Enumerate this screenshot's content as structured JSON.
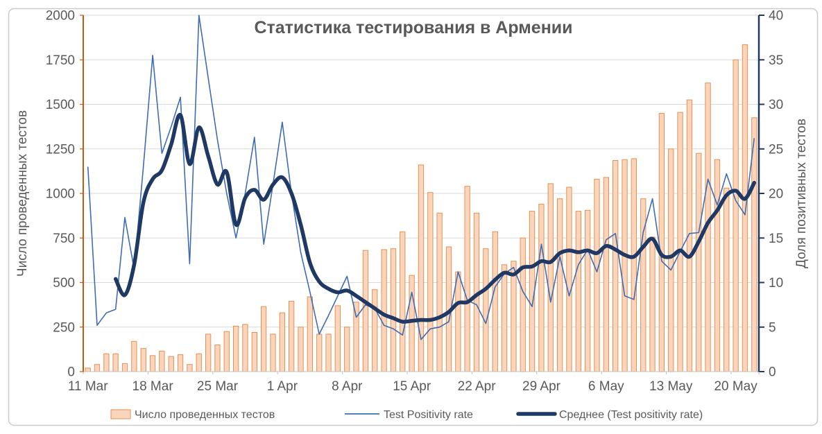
{
  "window": {
    "background": "#ffffff",
    "frame_border_color": "#c9cacc"
  },
  "chart_data": {
    "type": "combo-bar-line",
    "title": "Статистика тестирования в Армении",
    "title_color": "#595959",
    "label_color": "#595959",
    "grid": true,
    "gridline_color": "#d9d9d9",
    "legend_position": "bottom",
    "x": [
      "11 Mar",
      "12 Mar",
      "13 Mar",
      "14 Mar",
      "15 Mar",
      "16 Mar",
      "17 Mar",
      "18 Mar",
      "19 Mar",
      "20 Mar",
      "21 Mar",
      "22 Mar",
      "23 Mar",
      "24 Mar",
      "25 Mar",
      "26 Mar",
      "27 Mar",
      "28 Mar",
      "29 Mar",
      "30 Mar",
      "31 Mar",
      "1 Apr",
      "2 Apr",
      "3 Apr",
      "4 Apr",
      "5 Apr",
      "6 Apr",
      "7 Apr",
      "8 Apr",
      "9 Apr",
      "10 Apr",
      "11 Apr",
      "12 Apr",
      "13 Apr",
      "14 Apr",
      "15 Apr",
      "16 Apr",
      "17 Apr",
      "18 Apr",
      "19 Apr",
      "20 Apr",
      "21 Apr",
      "22 Apr",
      "23 Apr",
      "24 Apr",
      "25 Apr",
      "26 Apr",
      "27 Apr",
      "28 Apr",
      "29 Apr",
      "30 Apr",
      "1 May",
      "2 May",
      "3 May",
      "4 May",
      "5 May",
      "6 May",
      "7 May",
      "8 May",
      "9 May",
      "10 May",
      "11 May",
      "12 May",
      "13 May",
      "14 May",
      "15 May",
      "16 May",
      "17 May",
      "18 May",
      "19 May",
      "20 May",
      "21 May",
      "22 May"
    ],
    "x_tick_labels": [
      "11 Mar",
      "18 Mar",
      "25 Mar",
      "1 Apr",
      "8 Apr",
      "15 Apr",
      "22 Apr",
      "29 Apr",
      "6 May",
      "13 May",
      "20 May"
    ],
    "left_axis": {
      "title": "Число проведенных тестов",
      "min": 0,
      "max": 2000,
      "step": 250,
      "ticks": [
        "0",
        "250",
        "500",
        "750",
        "1000",
        "1250",
        "1500",
        "1750",
        "2000"
      ],
      "line_color": "#c55a11"
    },
    "right_axis": {
      "title": "Доля позитивных тестов",
      "min": 0,
      "max": 40,
      "step": 5,
      "ticks": [
        "0",
        "5",
        "10",
        "15",
        "20",
        "25",
        "30",
        "35",
        "40"
      ],
      "line_color": "#1f3864"
    },
    "bottom_axis": {
      "line_color": "#bfbfbf"
    },
    "series": [
      {
        "name": "Число проведенных тестов",
        "type": "bar",
        "axis": "left",
        "color_fill": "#f8d5bc",
        "color_border": "#e8914e",
        "values": [
          20,
          40,
          100,
          100,
          45,
          170,
          130,
          90,
          115,
          85,
          95,
          40,
          100,
          210,
          150,
          225,
          255,
          265,
          220,
          365,
          210,
          330,
          395,
          250,
          420,
          210,
          210,
          370,
          250,
          390,
          680,
          460,
          685,
          690,
          785,
          540,
          1160,
          1005,
          890,
          700,
          560,
          1040,
          890,
          690,
          785,
          600,
          620,
          750,
          900,
          940,
          1055,
          970,
          1035,
          900,
          905,
          1080,
          1090,
          1185,
          1190,
          1195,
          970,
          755,
          1450,
          1250,
          1455,
          1525,
          1225,
          1620,
          1190,
          1030,
          1750,
          1835,
          1425
        ]
      },
      {
        "name": "Test Positivity rate",
        "type": "line",
        "axis": "right",
        "color": "#3e6cb5",
        "stroke_width": 1.6,
        "values": [
          23,
          5.2,
          6.6,
          7,
          17.3,
          11.5,
          23,
          35.5,
          24.5,
          27.5,
          30.8,
          12.1,
          40,
          33,
          26,
          20,
          15,
          20,
          26.3,
          14.3,
          21,
          28,
          20,
          13.4,
          8.9,
          4.2,
          6.3,
          8.5,
          10.7,
          6.1,
          7.5,
          7.1,
          5.2,
          4.8,
          4.1,
          8.9,
          3.6,
          4.8,
          5,
          5.6,
          11.2,
          8,
          7.5,
          5.4,
          9.5,
          11,
          11.7,
          9,
          7.3,
          14.3,
          7.8,
          12.9,
          8.5,
          12,
          13.7,
          11.2,
          14.8,
          15.5,
          8.5,
          8.1,
          15.6,
          19.4,
          12.4,
          11.4,
          13.5,
          15.5,
          15.6,
          21.6,
          18.7,
          22.2,
          19.2,
          17.6,
          26.2
        ]
      },
      {
        "name": "Среднее (Test positivity rate)",
        "type": "line-smooth",
        "axis": "right",
        "color": "#1f3864",
        "stroke_width": 5.5,
        "values": [
          null,
          null,
          null,
          10.4,
          8.6,
          12,
          19,
          21.6,
          22.6,
          25.5,
          28.8,
          23.3,
          27.4,
          24.2,
          21,
          22.4,
          16.5,
          19.5,
          20.4,
          19.3,
          21,
          21.8,
          20,
          16.5,
          12.2,
          10.1,
          9.3,
          8.9,
          9.1,
          8.5,
          7.8,
          7.1,
          6.4,
          6,
          5.6,
          5.7,
          5.8,
          5.8,
          6.1,
          6.7,
          7.7,
          7.8,
          8.6,
          9.3,
          10.3,
          11.1,
          10.9,
          11.7,
          11.8,
          12.4,
          12.3,
          13.3,
          13.6,
          13.4,
          13.6,
          13.3,
          14.1,
          13.7,
          13.1,
          12.9,
          14,
          14.9,
          13.1,
          12.9,
          13.6,
          12.9,
          14.6,
          16.7,
          18.1,
          19.8,
          20.3,
          19.4,
          21.2
        ]
      }
    ]
  }
}
